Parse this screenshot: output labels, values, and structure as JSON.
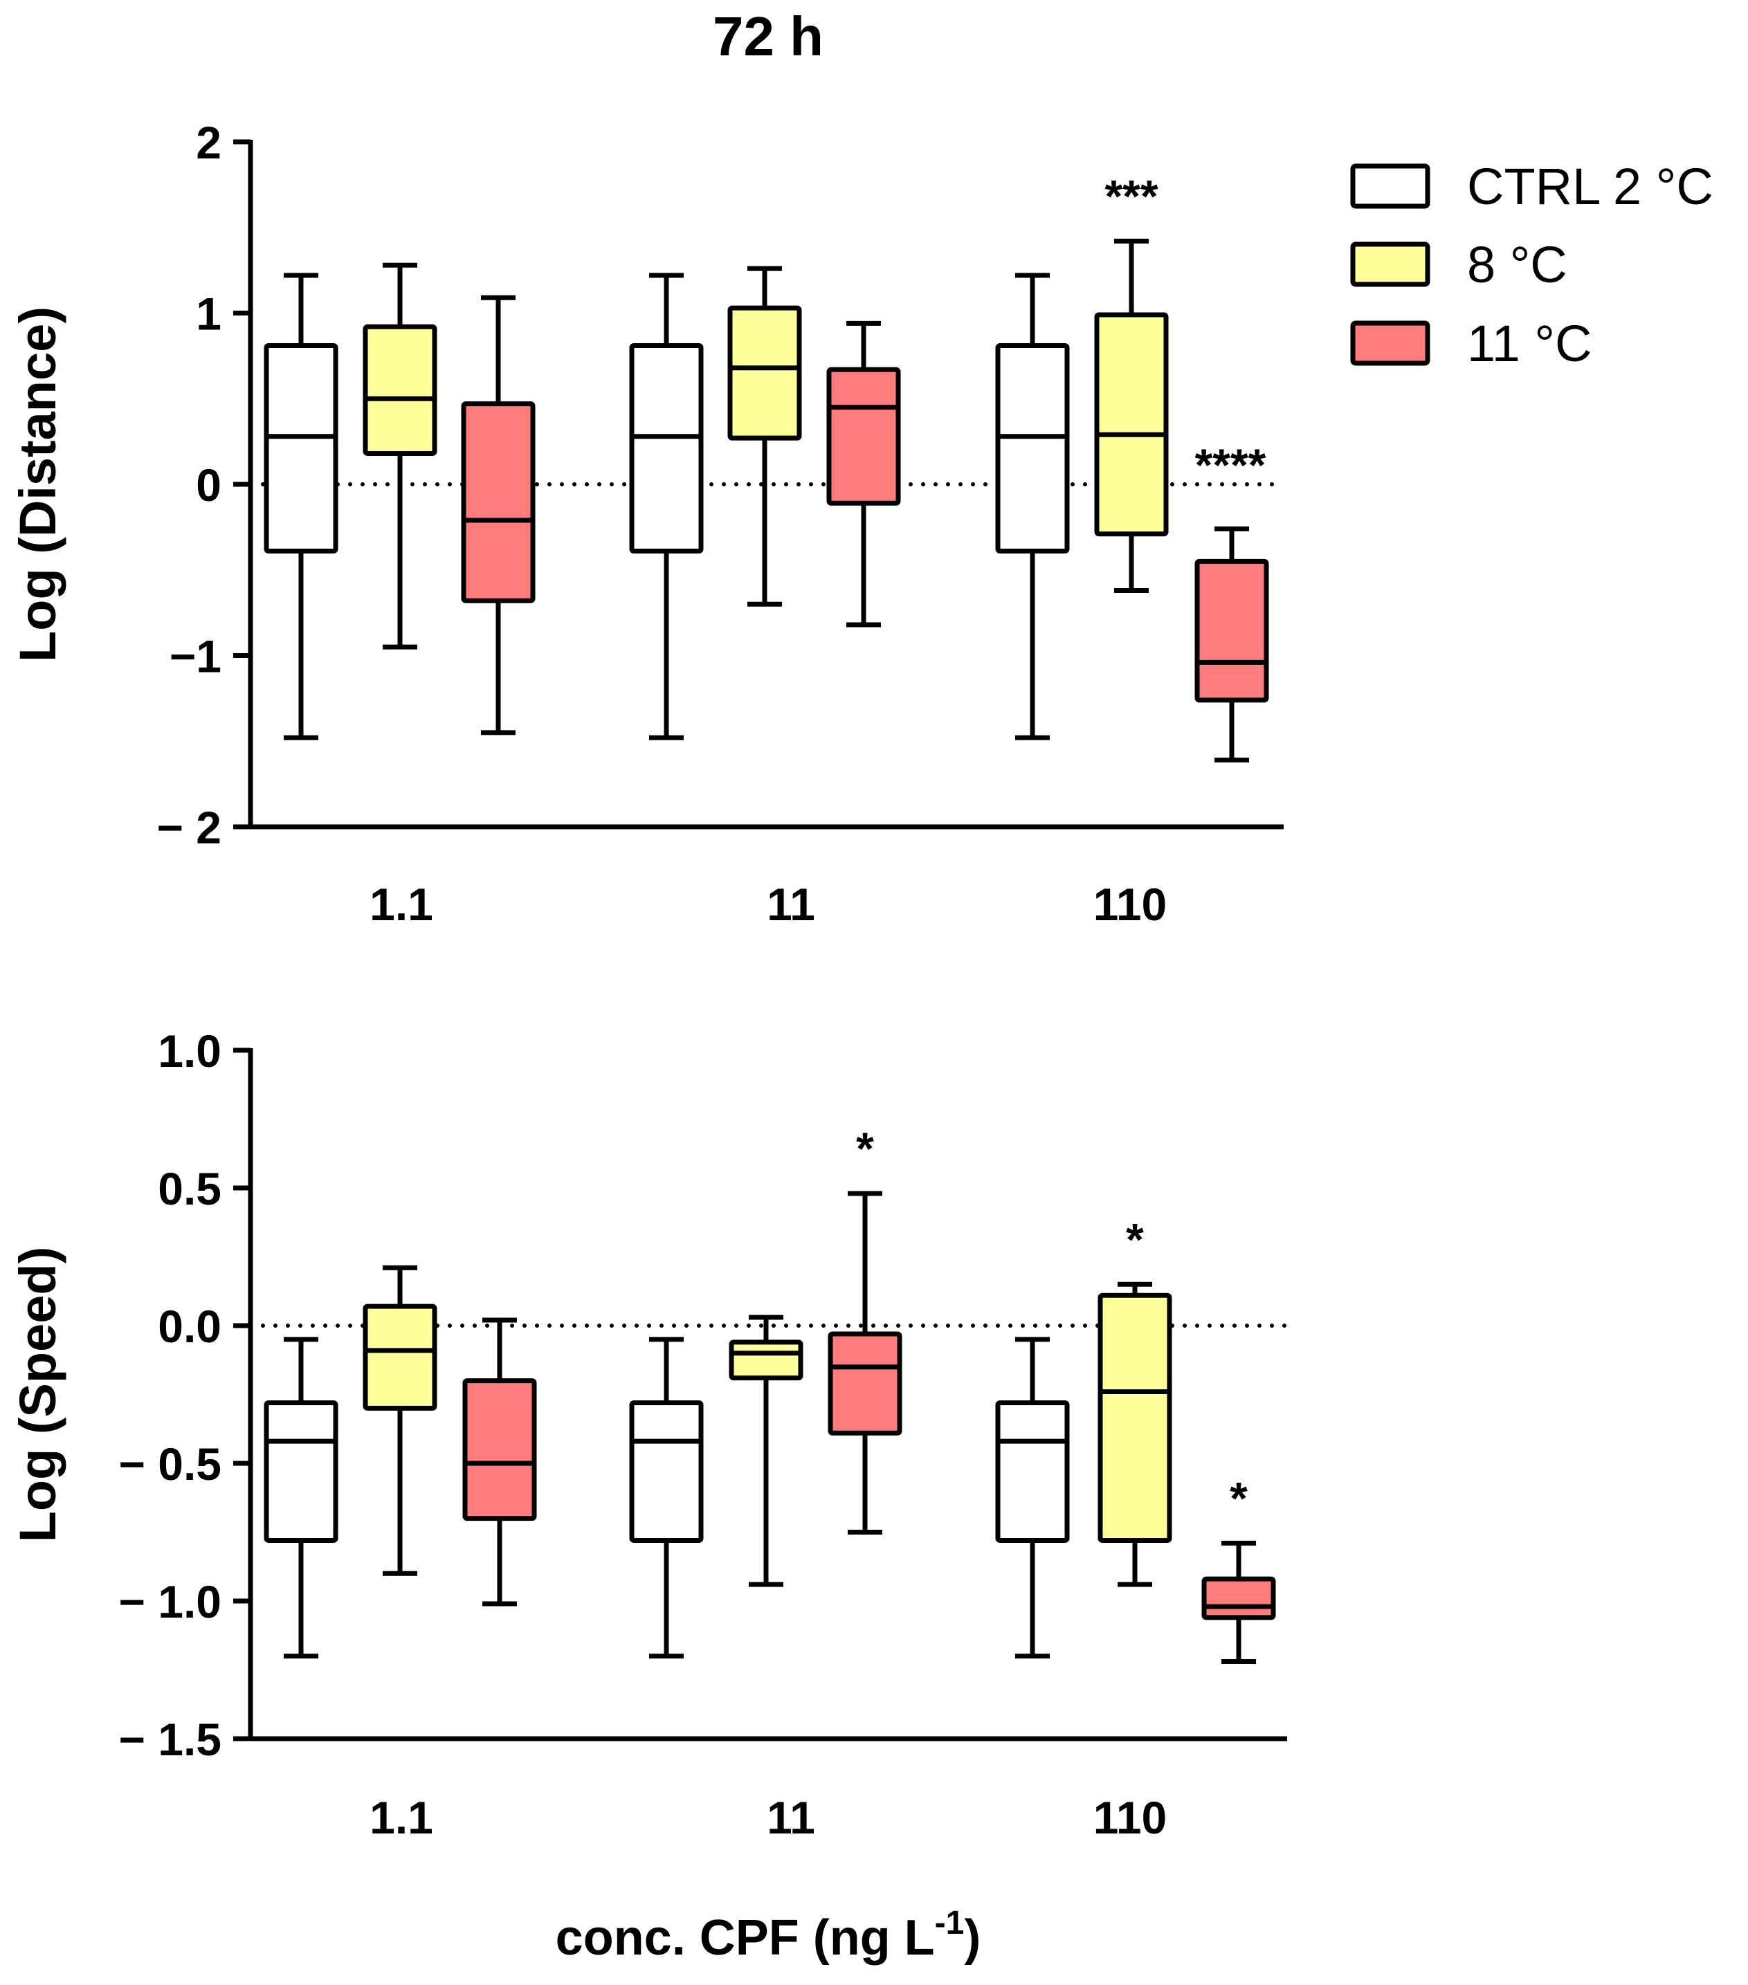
{
  "figure_title": "72 h",
  "shared_xlabel_main": "conc. CPF (ng L",
  "shared_xlabel_sup": "-1",
  "shared_xlabel_close": ")",
  "legend": [
    {
      "label": "CTRL 2 °C",
      "color": "#ffffff"
    },
    {
      "label": "8 °C",
      "color": "#ffff99"
    },
    {
      "label": "11 °C",
      "color": "#ff7c7c"
    }
  ],
  "chart_data": [
    {
      "type": "boxplot",
      "title": "",
      "ylabel": "Log (Distance)",
      "xlabel": "",
      "ylim": [
        -2,
        2
      ],
      "yticks": [
        {
          "value": 2,
          "label": "2"
        },
        {
          "value": 1,
          "label": "1"
        },
        {
          "value": 0,
          "label": "0"
        },
        {
          "value": -1,
          "label": "−1"
        },
        {
          "value": -2,
          "label": "− 2"
        }
      ],
      "reference_line": 0,
      "categories": [
        "1.1",
        "11",
        "110"
      ],
      "groups": [
        {
          "category": "1.1",
          "boxes": [
            {
              "series": "CTRL 2 °C",
              "whisker_low": -1.48,
              "q1": -0.39,
              "median": 0.28,
              "q3": 0.81,
              "whisker_high": 1.22,
              "annotation": ""
            },
            {
              "series": "8 °C",
              "whisker_low": -0.95,
              "q1": 0.18,
              "median": 0.5,
              "q3": 0.92,
              "whisker_high": 1.28,
              "annotation": ""
            },
            {
              "series": "11 °C",
              "whisker_low": -1.45,
              "q1": -0.68,
              "median": -0.21,
              "q3": 0.47,
              "whisker_high": 1.09,
              "annotation": ""
            }
          ]
        },
        {
          "category": "11",
          "boxes": [
            {
              "series": "CTRL 2 °C",
              "whisker_low": -1.48,
              "q1": -0.39,
              "median": 0.28,
              "q3": 0.81,
              "whisker_high": 1.22,
              "annotation": ""
            },
            {
              "series": "8 °C",
              "whisker_low": -0.7,
              "q1": 0.27,
              "median": 0.68,
              "q3": 1.03,
              "whisker_high": 1.26,
              "annotation": ""
            },
            {
              "series": "11 °C",
              "whisker_low": -0.82,
              "q1": -0.11,
              "median": 0.45,
              "q3": 0.67,
              "whisker_high": 0.94,
              "annotation": ""
            }
          ]
        },
        {
          "category": "110",
          "boxes": [
            {
              "series": "CTRL 2 °C",
              "whisker_low": -1.48,
              "q1": -0.39,
              "median": 0.28,
              "q3": 0.81,
              "whisker_high": 1.22,
              "annotation": ""
            },
            {
              "series": "8 °C",
              "whisker_low": -0.62,
              "q1": -0.29,
              "median": 0.29,
              "q3": 0.99,
              "whisker_high": 1.42,
              "annotation": "***"
            },
            {
              "series": "11 °C",
              "whisker_low": -1.61,
              "q1": -1.26,
              "median": -1.04,
              "q3": -0.45,
              "whisker_high": -0.26,
              "annotation": "****"
            }
          ]
        }
      ]
    },
    {
      "type": "boxplot",
      "title": "",
      "ylabel": "Log (Speed)",
      "xlabel": "conc. CPF (ng L-1)",
      "ylim": [
        -1.5,
        1.0
      ],
      "yticks": [
        {
          "value": 1.0,
          "label": "1.0"
        },
        {
          "value": 0.5,
          "label": "0.5"
        },
        {
          "value": 0.0,
          "label": "0.0"
        },
        {
          "value": -0.5,
          "label": "− 0.5"
        },
        {
          "value": -1.0,
          "label": "− 1.0"
        },
        {
          "value": -1.5,
          "label": "− 1.5"
        }
      ],
      "reference_line": 0,
      "categories": [
        "1.1",
        "11",
        "110"
      ],
      "groups": [
        {
          "category": "1.1",
          "boxes": [
            {
              "series": "CTRL 2 °C",
              "whisker_low": -1.2,
              "q1": -0.78,
              "median": -0.42,
              "q3": -0.28,
              "whisker_high": -0.05,
              "annotation": ""
            },
            {
              "series": "8 °C",
              "whisker_low": -0.9,
              "q1": -0.3,
              "median": -0.09,
              "q3": 0.07,
              "whisker_high": 0.21,
              "annotation": ""
            },
            {
              "series": "11 °C",
              "whisker_low": -1.01,
              "q1": -0.7,
              "median": -0.5,
              "q3": -0.2,
              "whisker_high": 0.02,
              "annotation": ""
            }
          ]
        },
        {
          "category": "11",
          "boxes": [
            {
              "series": "CTRL 2 °C",
              "whisker_low": -1.2,
              "q1": -0.78,
              "median": -0.42,
              "q3": -0.28,
              "whisker_high": -0.05,
              "annotation": ""
            },
            {
              "series": "8 °C",
              "whisker_low": -0.94,
              "q1": -0.19,
              "median": -0.1,
              "q3": -0.06,
              "whisker_high": 0.03,
              "annotation": ""
            },
            {
              "series": "11 °C",
              "whisker_low": -0.75,
              "q1": -0.39,
              "median": -0.15,
              "q3": -0.03,
              "whisker_high": 0.48,
              "annotation": "*"
            }
          ]
        },
        {
          "category": "110",
          "boxes": [
            {
              "series": "CTRL 2 °C",
              "whisker_low": -1.2,
              "q1": -0.78,
              "median": -0.42,
              "q3": -0.28,
              "whisker_high": -0.05,
              "annotation": ""
            },
            {
              "series": "8 °C",
              "whisker_low": -0.94,
              "q1": -0.78,
              "median": -0.24,
              "q3": 0.11,
              "whisker_high": 0.15,
              "annotation": "*"
            },
            {
              "series": "11 °C",
              "whisker_low": -1.22,
              "q1": -1.06,
              "median": -1.02,
              "q3": -0.92,
              "whisker_high": -0.79,
              "annotation": "*"
            }
          ]
        }
      ]
    }
  ]
}
